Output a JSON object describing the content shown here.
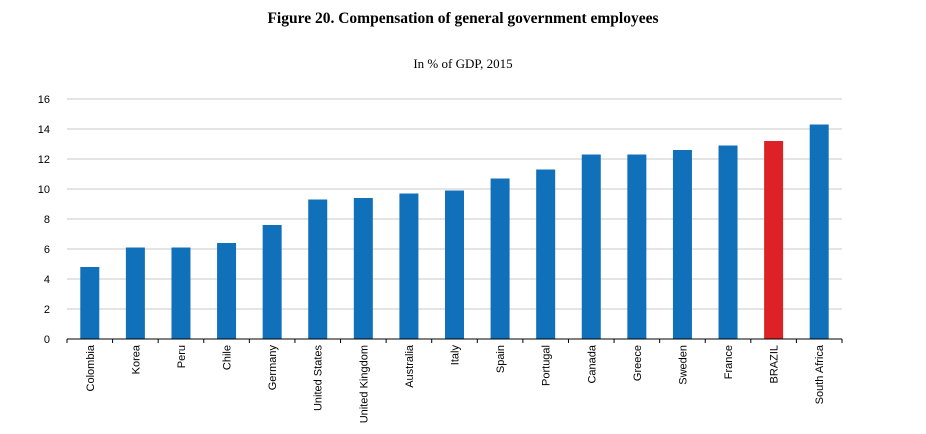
{
  "title": "Figure 20. Compensation of general government employees",
  "subtitle": "In % of GDP, 2015",
  "chart_data": {
    "type": "bar",
    "title": "Figure 20. Compensation of general government employees",
    "subtitle": "In % of GDP, 2015",
    "xlabel": "",
    "ylabel": "",
    "ylim": [
      0,
      16
    ],
    "yticks": [
      0,
      2,
      4,
      6,
      8,
      10,
      12,
      14,
      16
    ],
    "grid": true,
    "categories": [
      "Colombia",
      "Korea",
      "Peru",
      "Chile",
      "Germany",
      "United States",
      "United Kingdom",
      "Australia",
      "Italy",
      "Spain",
      "Portugal",
      "Canada",
      "Greece",
      "Sweden",
      "France",
      "BRAZIL",
      "South Africa"
    ],
    "values": [
      4.8,
      6.1,
      6.1,
      6.4,
      7.6,
      9.3,
      9.4,
      9.7,
      9.9,
      10.7,
      11.3,
      12.3,
      12.3,
      12.6,
      12.9,
      13.2,
      14.3
    ],
    "colors": {
      "default": "#1170BA",
      "highlight": "#DD2227",
      "highlight_category": "BRAZIL",
      "grid": "#C8C8C8",
      "axis": "#000000"
    }
  }
}
